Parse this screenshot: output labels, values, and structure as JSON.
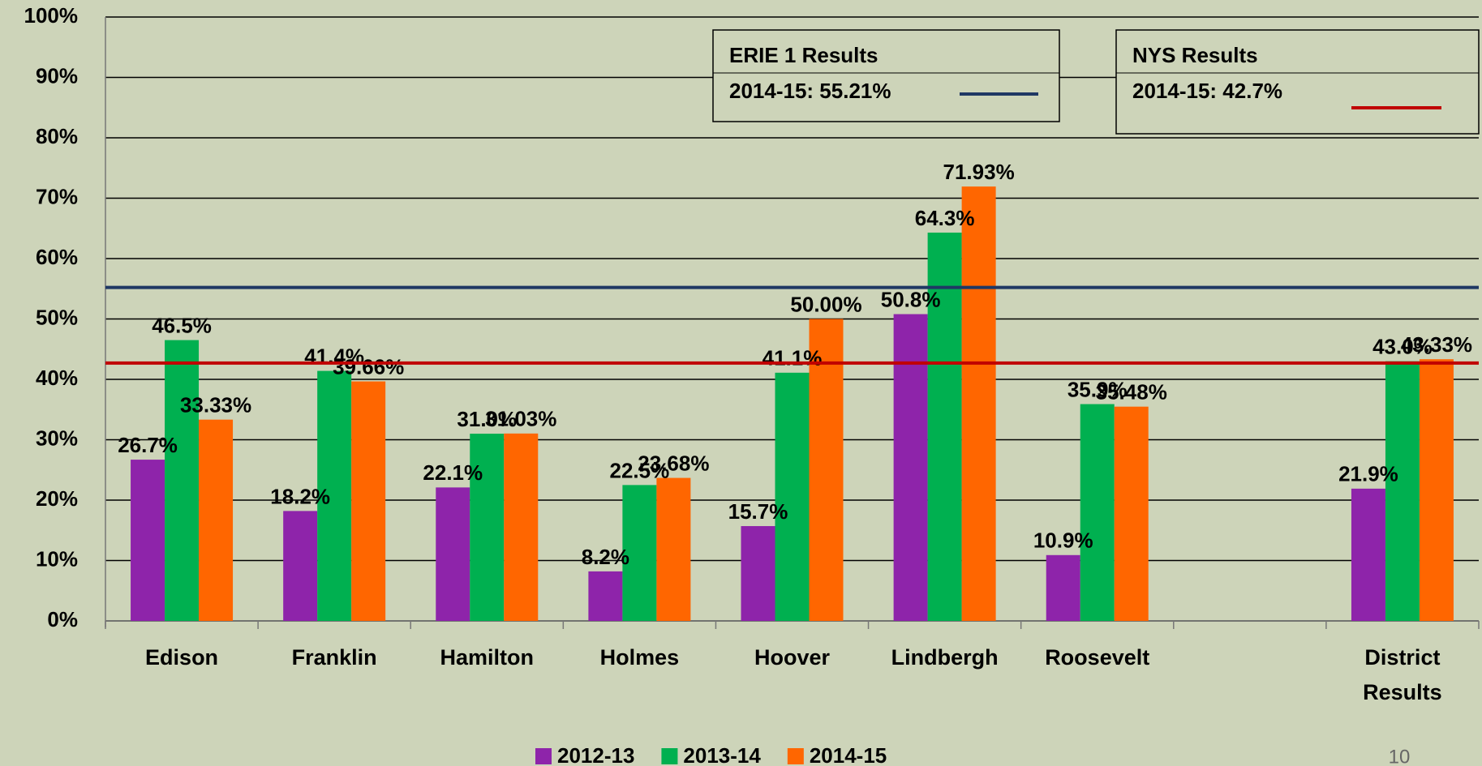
{
  "chart_data": {
    "type": "bar",
    "categories": [
      "Edison",
      "Franklin",
      "Hamilton",
      "Holmes",
      "Hoover",
      "Lindbergh",
      "Roosevelt",
      null,
      "District Results"
    ],
    "series": [
      {
        "name": "2012-13",
        "color": "#8e24aa",
        "values": [
          26.7,
          18.2,
          22.1,
          8.2,
          15.7,
          50.8,
          10.9,
          null,
          21.9
        ],
        "value_labels": [
          "26.7%",
          "18.2%",
          "22.1%",
          "8.2%",
          "15.7%",
          "50.8%",
          "10.9%",
          null,
          "21.9%"
        ]
      },
      {
        "name": "2013-14",
        "color": "#00b050",
        "values": [
          46.5,
          41.4,
          31.0,
          22.5,
          41.1,
          64.3,
          35.9,
          null,
          43.0
        ],
        "value_labels": [
          "46.5%",
          "41.4%",
          "31.0%",
          "22.5%",
          "41.1%",
          "64.3%",
          "35.9%",
          null,
          "43.0%"
        ]
      },
      {
        "name": "2014-15",
        "color": "#ff6600",
        "values": [
          33.33,
          39.66,
          31.03,
          23.68,
          50.0,
          71.93,
          35.48,
          null,
          43.33
        ],
        "value_labels": [
          "33.33%",
          "39.66%",
          "31.03%",
          "23.68%",
          "50.00%",
          "71.93%",
          "35.48%",
          null,
          "43.33%"
        ]
      }
    ],
    "reference_lines": [
      {
        "name": "ERIE 1 Results",
        "label": "2014-15:   55.21%",
        "value": 55.21,
        "color": "#1f3864"
      },
      {
        "name": "NYS Results",
        "label": "2014-15:  42.7%",
        "value": 42.7,
        "color": "#c00000"
      }
    ],
    "ylim": [
      0,
      100
    ],
    "yticks": [
      {
        "value": 0,
        "label": "0%"
      },
      {
        "value": 10,
        "label": "10%"
      },
      {
        "value": 20,
        "label": "20%"
      },
      {
        "value": 30,
        "label": "30%"
      },
      {
        "value": 40,
        "label": "40%"
      },
      {
        "value": 50,
        "label": "50%"
      },
      {
        "value": 60,
        "label": "60%"
      },
      {
        "value": 70,
        "label": "70%"
      },
      {
        "value": 80,
        "label": "80%"
      },
      {
        "value": 90,
        "label": "90%"
      },
      {
        "value": 100,
        "label": "100%"
      }
    ],
    "grid": true,
    "legend": "bottom",
    "page_number": "10"
  }
}
